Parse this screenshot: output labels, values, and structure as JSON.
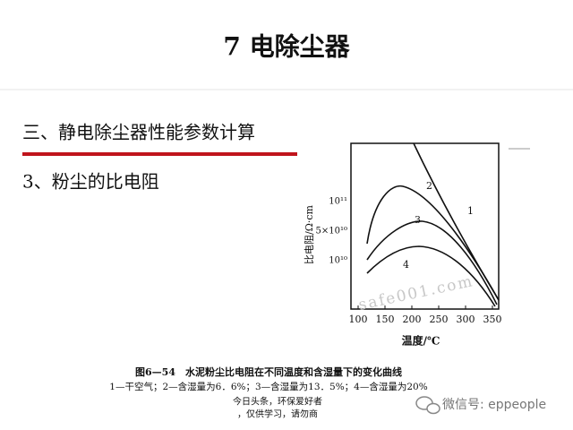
{
  "slide": {
    "title": "7  电除尘器",
    "heading": "三、静电除尘器性能参数计算",
    "subheading": "3、粉尘的比电阻",
    "figure": {
      "y_axis_label": "比电阻/Ω·cm",
      "x_axis_label": "温度/℃",
      "y_tick_labels": [
        "10¹¹",
        "5×10¹⁰",
        "10¹⁰"
      ],
      "x_tick_labels": [
        "100",
        "150",
        "200",
        "250",
        "300",
        "350"
      ],
      "curve_labels": [
        "1",
        "2",
        "3",
        "4"
      ],
      "watermark": "safe001.com",
      "caption": "图6—54　水泥粉尘比电阻在不同温度和含湿量下的变化曲线",
      "legend": "1—干空气；2—含湿量为6．6%；3—含湿量为13．5%；4—含湿量为20%"
    },
    "source_lines": [
      "今日头条，环保爱好者",
      "，仅供学习，请勿商"
    ],
    "wechat": "微信号: eppeople"
  }
}
